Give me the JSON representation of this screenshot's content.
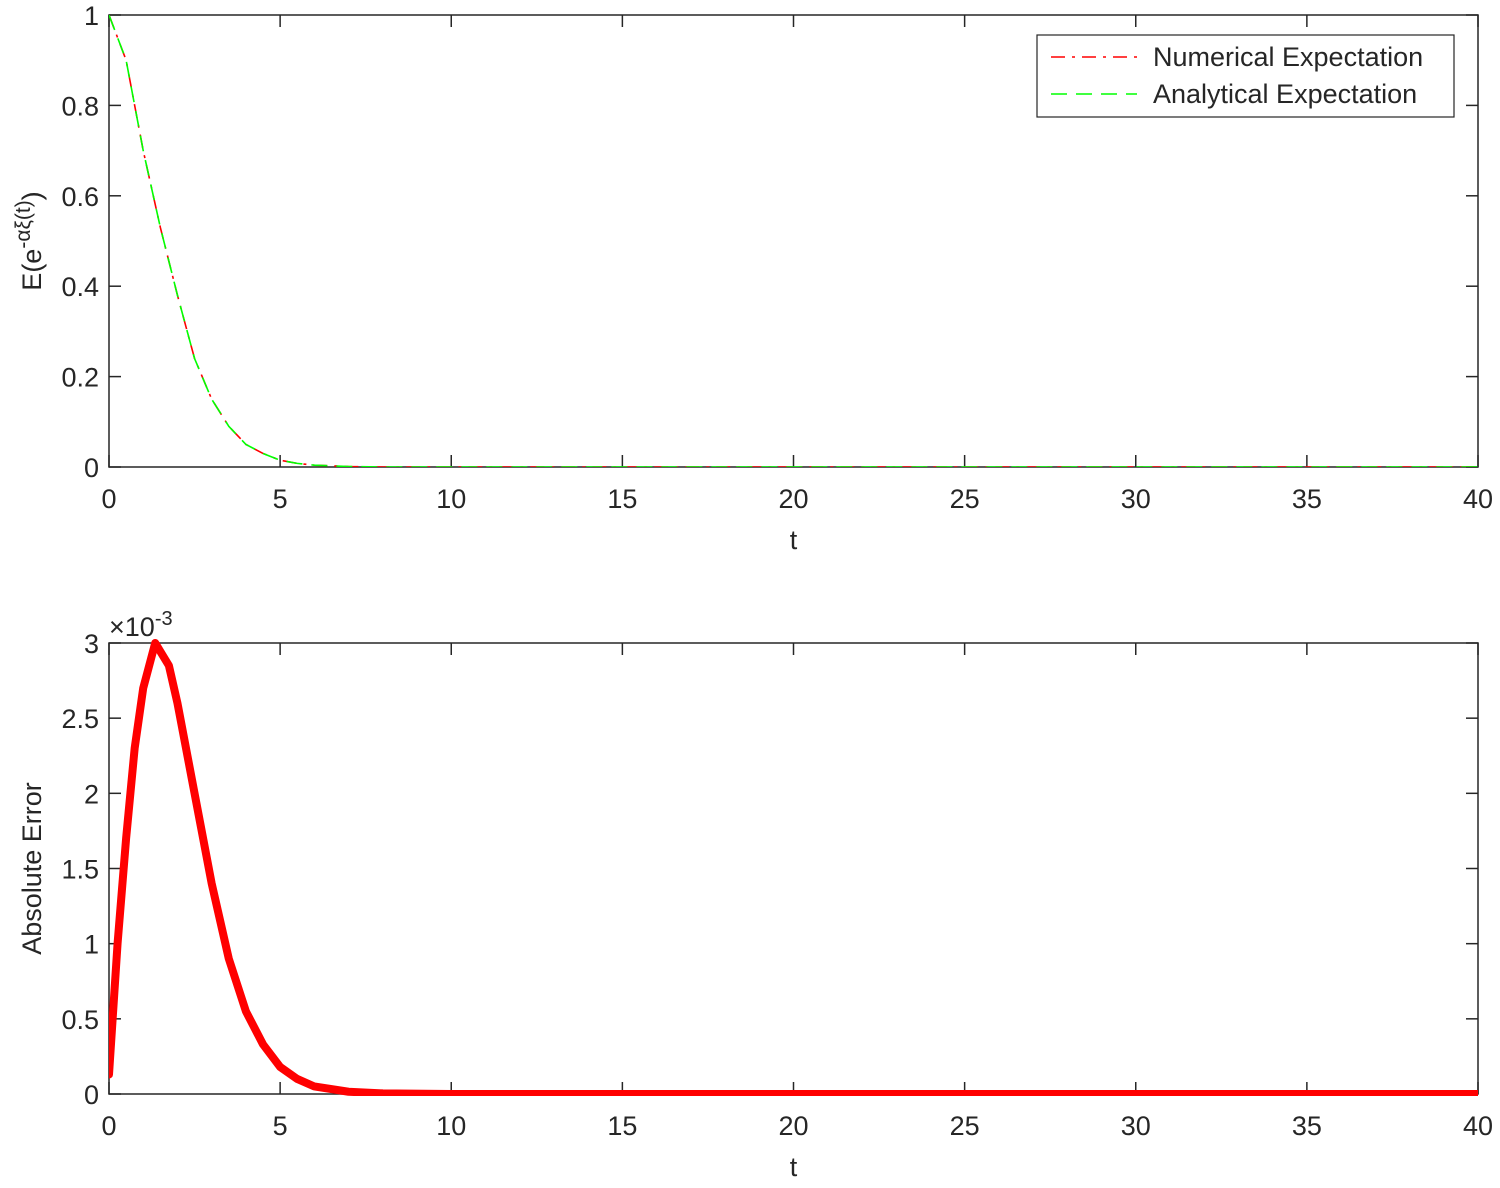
{
  "chart_data": [
    {
      "type": "line",
      "xlabel": "t",
      "ylabel": [
        "E(e",
        "-αξ(t)",
        ")"
      ],
      "x": [
        0,
        0.5,
        1,
        1.5,
        2,
        2.5,
        3,
        3.5,
        4,
        4.5,
        5,
        5.5,
        6,
        7,
        8,
        10,
        15,
        20,
        25,
        30,
        35,
        40
      ],
      "series": [
        {
          "name": "Numerical Expectation",
          "color": "#ff0000",
          "dash": "dash-dot",
          "values": [
            1,
            0.9,
            0.7,
            0.53,
            0.38,
            0.24,
            0.15,
            0.09,
            0.05,
            0.03,
            0.015,
            0.008,
            0.004,
            0.001,
            0,
            0,
            0,
            0,
            0,
            0,
            0,
            0
          ]
        },
        {
          "name": "Analytical Expectation",
          "color": "#00ff00",
          "dash": "dashed",
          "values": [
            1,
            0.9,
            0.7,
            0.53,
            0.38,
            0.24,
            0.15,
            0.09,
            0.05,
            0.03,
            0.015,
            0.008,
            0.004,
            0.001,
            0,
            0,
            0,
            0,
            0,
            0,
            0,
            0
          ]
        }
      ],
      "xlim": [
        0,
        40
      ],
      "xticks": [
        0,
        5,
        10,
        15,
        20,
        25,
        30,
        35,
        40
      ],
      "ylim": [
        0,
        1
      ],
      "yticks": [
        0,
        0.2,
        0.4,
        0.6,
        0.8,
        1
      ],
      "legend": "northeast",
      "grid": false
    },
    {
      "type": "line",
      "xlabel": "t",
      "ylabel": [
        "Absolute Error"
      ],
      "yexponent": [
        "×10",
        "-3"
      ],
      "x": [
        0,
        0.25,
        0.5,
        0.75,
        1,
        1.35,
        1.75,
        2,
        2.5,
        3,
        3.5,
        4,
        4.5,
        5,
        5.5,
        6,
        7,
        8,
        10,
        15,
        20,
        25,
        30,
        35,
        40
      ],
      "values": [
        0.13,
        1.0,
        1.7,
        2.3,
        2.7,
        3.0,
        2.85,
        2.6,
        2.0,
        1.4,
        0.9,
        0.55,
        0.33,
        0.18,
        0.1,
        0.05,
        0.015,
        0.004,
        0,
        0,
        0,
        0,
        0,
        0,
        0
      ],
      "color": "#ff0000",
      "linewidth": 8,
      "xlim": [
        0,
        40
      ],
      "xticks": [
        0,
        5,
        10,
        15,
        20,
        25,
        30,
        35,
        40
      ],
      "ylim": [
        0,
        3
      ],
      "yticks": [
        0,
        0.5,
        1,
        1.5,
        2,
        2.5,
        3
      ],
      "grid": false
    }
  ]
}
